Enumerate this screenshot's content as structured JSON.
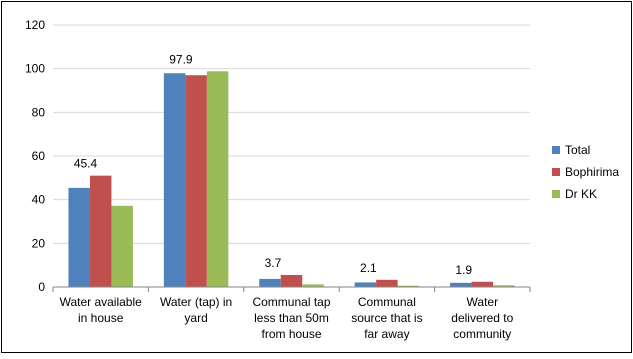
{
  "chart_data": {
    "type": "bar",
    "categories": [
      [
        "Water available",
        "in house"
      ],
      [
        "Water (tap) in",
        "yard"
      ],
      [
        "Communal tap",
        "less than 50m",
        "from house"
      ],
      [
        "Communal",
        "source that is",
        "far away"
      ],
      [
        "Water",
        "delivered to",
        "community"
      ]
    ],
    "series": [
      {
        "name": "Total",
        "color": "#4F81BD",
        "values": [
          45.4,
          97.9,
          3.7,
          2.1,
          1.9
        ]
      },
      {
        "name": "Bophirima",
        "color": "#C0504D",
        "values": [
          51,
          97,
          5.5,
          3.3,
          2.4
        ]
      },
      {
        "name": "Dr KK",
        "color": "#9BBB59",
        "values": [
          37.2,
          98.8,
          1.2,
          0.6,
          0.8
        ]
      }
    ],
    "data_labels": [
      {
        "category_index": 0,
        "series_index": 0,
        "text": "45.4"
      },
      {
        "category_index": 1,
        "series_index": 0,
        "text": "97.9"
      },
      {
        "category_index": 2,
        "series_index": 0,
        "text": "3.7"
      },
      {
        "category_index": 3,
        "series_index": 0,
        "text": "2.1"
      },
      {
        "category_index": 4,
        "series_index": 0,
        "text": "1.9"
      }
    ],
    "ylim": [
      0,
      120
    ],
    "yticks": [
      0,
      20,
      40,
      60,
      80,
      100,
      120
    ],
    "grid": true,
    "legend_position": "right"
  }
}
